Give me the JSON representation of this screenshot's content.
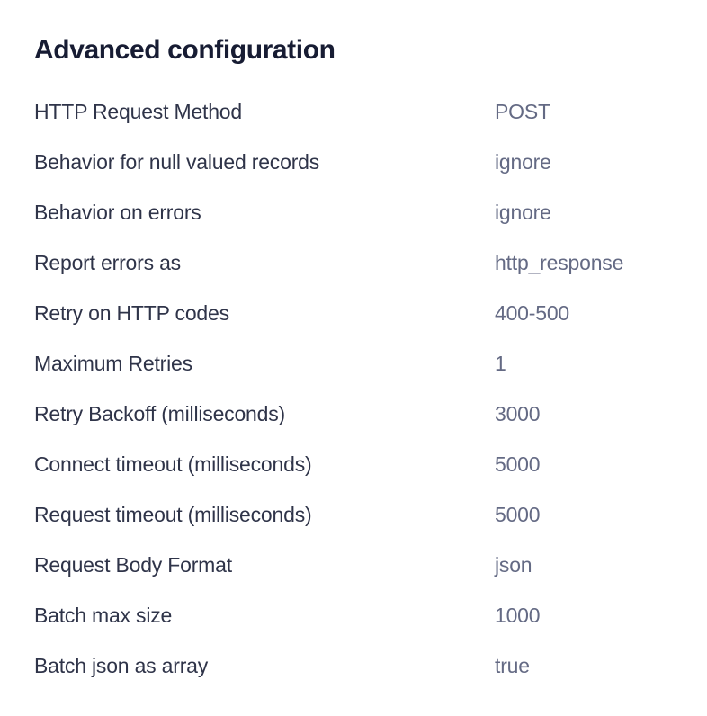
{
  "page": {
    "title": "Advanced configuration"
  },
  "config": {
    "rows": [
      {
        "label": "HTTP Request Method",
        "value": "POST"
      },
      {
        "label": "Behavior for null valued records",
        "value": "ignore"
      },
      {
        "label": "Behavior on errors",
        "value": "ignore"
      },
      {
        "label": "Report errors as",
        "value": "http_response"
      },
      {
        "label": "Retry on HTTP codes",
        "value": "400-500"
      },
      {
        "label": "Maximum Retries",
        "value": "1"
      },
      {
        "label": "Retry Backoff (milliseconds)",
        "value": "3000"
      },
      {
        "label": "Connect timeout (milliseconds)",
        "value": "5000"
      },
      {
        "label": "Request timeout (milliseconds)",
        "value": "5000"
      },
      {
        "label": "Request Body Format",
        "value": "json"
      },
      {
        "label": "Batch max size",
        "value": "1000"
      },
      {
        "label": "Batch json as array",
        "value": "true"
      }
    ]
  },
  "colors": {
    "background": "#ffffff",
    "title": "#171c33",
    "label": "#2f3449",
    "value": "#646a84"
  }
}
